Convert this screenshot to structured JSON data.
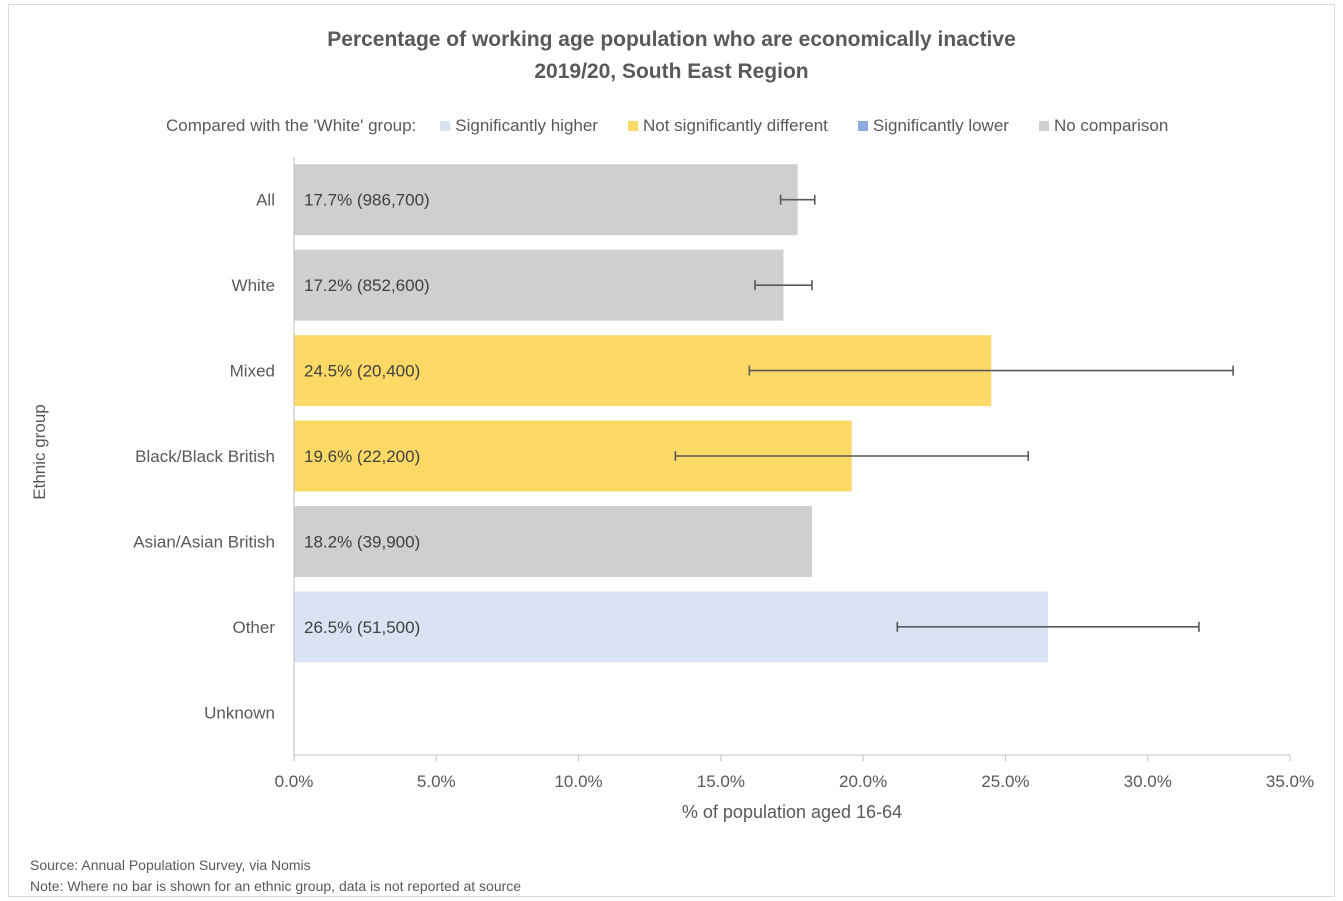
{
  "chart_data": {
    "type": "bar",
    "orientation": "horizontal",
    "title": "Percentage of working age population who are economically inactive",
    "subtitle": "2019/20, South East Region",
    "legend_title": "Compared with the 'White' group:",
    "legend": [
      {
        "label": "Significantly higher",
        "color": "#dae3f3"
      },
      {
        "label": "Not significantly different",
        "color": "#ffd966"
      },
      {
        "label": "Significantly lower",
        "color": "#8faadc"
      },
      {
        "label": "No comparison",
        "color": "#d0cece"
      }
    ],
    "legend_position": "top",
    "categories": [
      "All",
      "White",
      "Mixed",
      "Black/Black British",
      "Asian/Asian British",
      "Other",
      "Unknown"
    ],
    "values": [
      17.7,
      17.2,
      24.5,
      19.6,
      18.2,
      26.5,
      null
    ],
    "data_labels": [
      "17.7% (986,700)",
      "17.2% (852,600)",
      "24.5% (20,400)",
      "19.6% (22,200)",
      "18.2% (39,900)",
      "26.5% (51,500)",
      ""
    ],
    "comparison": [
      "No comparison",
      "No comparison",
      "Not significantly different",
      "Not significantly different",
      "No comparison",
      "Significantly higher",
      null
    ],
    "error_low": [
      17.1,
      16.2,
      16.0,
      13.4,
      null,
      21.2,
      null
    ],
    "error_high": [
      18.3,
      18.2,
      33.0,
      25.8,
      null,
      31.8,
      null
    ],
    "xlabel": "% of population aged 16-64",
    "ylabel": "Ethnic group",
    "xlim": [
      0,
      35
    ],
    "xticks": [
      "0.0%",
      "5.0%",
      "10.0%",
      "15.0%",
      "20.0%",
      "25.0%",
      "30.0%",
      "35.0%"
    ],
    "grid": false
  },
  "footer": {
    "source": "Source: Annual Population Survey, via Nomis",
    "note": "Note: Where no bar is shown for an ethnic group, data is not reported at source"
  }
}
